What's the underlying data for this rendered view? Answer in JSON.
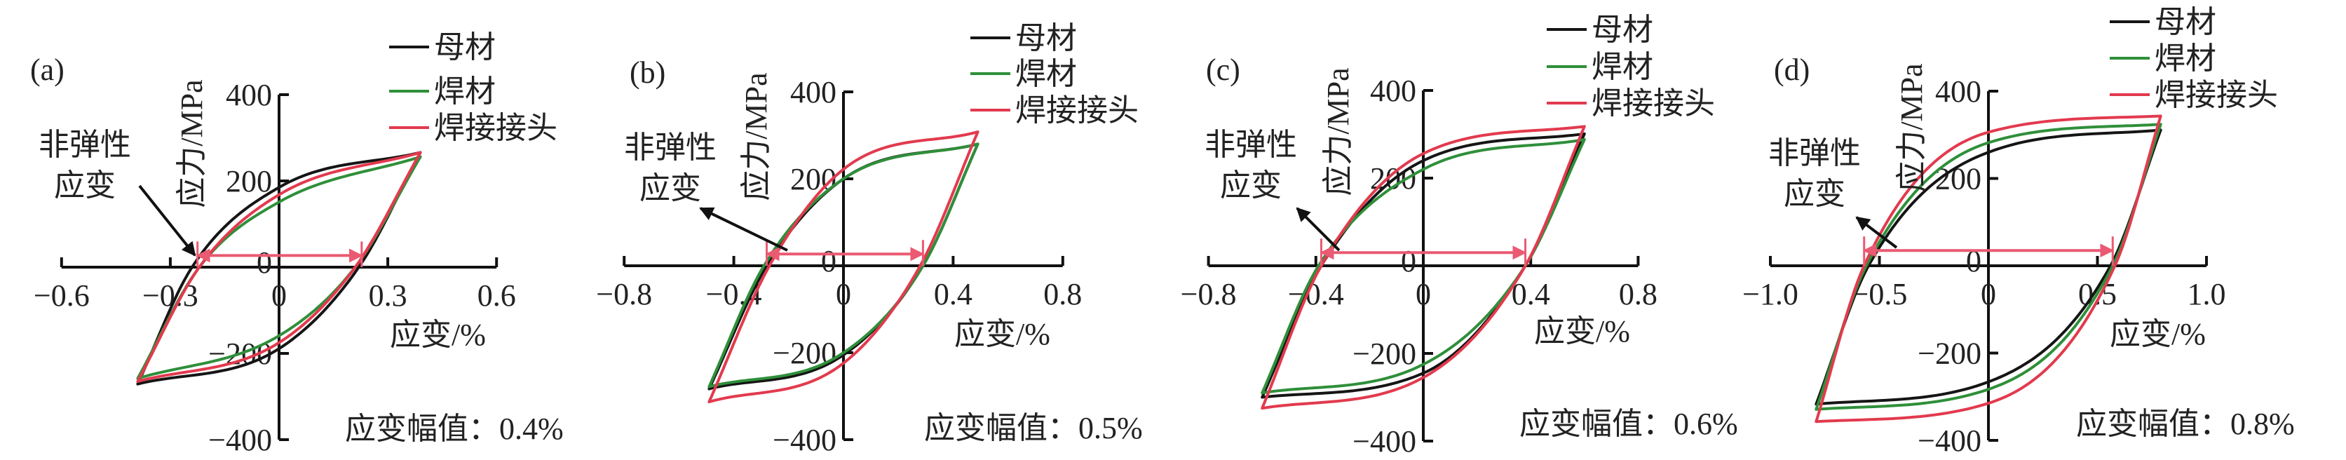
{
  "colors": {
    "母材": "#151515",
    "焊材": "#2f8f3a",
    "焊接接头": "#e23a4e",
    "marker": "#ea5a72",
    "annotation_arrow": "#111111"
  },
  "legend": [
    "母材",
    "焊材",
    "焊接接头"
  ],
  "chart_data": [
    {
      "type": "line",
      "panel_label": "(a)",
      "xlabel": "应变/%",
      "ylabel": "应力/MPa",
      "xlim": [
        -0.6,
        0.6
      ],
      "ylim": [
        -400,
        400
      ],
      "xticks": [
        "-0.6",
        "-0.3",
        "0",
        "0.3",
        "0.6"
      ],
      "xtick_values": [
        -0.6,
        -0.3,
        0,
        0.3,
        0.6
      ],
      "yticks": [
        "400",
        "200",
        "0",
        "-200",
        "-400"
      ],
      "ytick_values": [
        400,
        200,
        0,
        -200,
        -400
      ],
      "annotation": "非弹性\n应变",
      "amplitude_text": "应变幅值：0.4%",
      "inelastic_strain_marker": {
        "from": -0.225,
        "to": 0.228,
        "stress": 27
      },
      "series": [
        {
          "name": "母材",
          "peak": [
            0.39,
            266
          ],
          "valley": [
            -0.39,
            -271
          ],
          "upper_stress_at_zero_strain": 185,
          "lower_stress_at_zero_strain": -189,
          "upper_strain_at_zero_stress": -0.24,
          "lower_strain_at_zero_stress": 0.22
        },
        {
          "name": "焊材",
          "peak": [
            0.39,
            256
          ],
          "valley": [
            -0.39,
            -258
          ],
          "upper_stress_at_zero_strain": 151,
          "lower_stress_at_zero_strain": -159,
          "upper_strain_at_zero_stress": -0.22,
          "lower_strain_at_zero_stress": 0.21
        },
        {
          "name": "焊接接头",
          "peak": [
            0.39,
            266
          ],
          "valley": [
            -0.39,
            -265
          ],
          "upper_stress_at_zero_strain": 168,
          "lower_stress_at_zero_strain": -175,
          "upper_strain_at_zero_stress": -0.22,
          "lower_strain_at_zero_stress": 0.21
        }
      ]
    },
    {
      "type": "line",
      "panel_label": "(b)",
      "xlabel": "应变/%",
      "ylabel": "应力/MPa",
      "xlim": [
        -0.8,
        0.8
      ],
      "ylim": [
        -400,
        400
      ],
      "xticks": [
        "-0.8",
        "-0.4",
        "0",
        "0.4",
        "0.8"
      ],
      "xtick_values": [
        -0.8,
        -0.4,
        0,
        0.4,
        0.8
      ],
      "yticks": [
        "400",
        "200",
        "0",
        "-200",
        "-400"
      ],
      "ytick_values": [
        400,
        200,
        0,
        -200,
        -400
      ],
      "annotation": "非弹性\n应变",
      "amplitude_text": "应变幅值：0.5%",
      "inelastic_strain_marker": {
        "from": -0.28,
        "to": 0.29,
        "stress": 27
      },
      "series": [
        {
          "name": "母材",
          "peak": [
            0.49,
            280
          ],
          "valley": [
            -0.49,
            -283
          ],
          "upper_stress_at_zero_strain": 200,
          "lower_stress_at_zero_strain": -205,
          "upper_strain_at_zero_stress": -0.28,
          "lower_strain_at_zero_stress": 0.29
        },
        {
          "name": "焊材",
          "peak": [
            0.49,
            280
          ],
          "valley": [
            -0.49,
            -278
          ],
          "upper_stress_at_zero_strain": 200,
          "lower_stress_at_zero_strain": -200,
          "upper_strain_at_zero_stress": -0.29,
          "lower_strain_at_zero_stress": 0.29
        },
        {
          "name": "焊接接头",
          "peak": [
            0.49,
            308
          ],
          "valley": [
            -0.49,
            -313
          ],
          "upper_stress_at_zero_strain": 222,
          "lower_stress_at_zero_strain": -224,
          "upper_strain_at_zero_stress": -0.27,
          "lower_strain_at_zero_stress": 0.28
        }
      ]
    },
    {
      "type": "line",
      "panel_label": "(c)",
      "xlabel": "应变/%",
      "ylabel": "应力/MPa",
      "xlim": [
        -0.8,
        0.8
      ],
      "ylim": [
        -400,
        400
      ],
      "xticks": [
        "-0.8",
        "-0.4",
        "0",
        "0.4",
        "0.8"
      ],
      "xtick_values": [
        -0.8,
        -0.4,
        0,
        0.4,
        0.8
      ],
      "yticks": [
        "400",
        "200",
        "0",
        "-200",
        "-400"
      ],
      "ytick_values": [
        400,
        200,
        0,
        -200,
        -400
      ],
      "annotation": "非弹性\n应变",
      "amplitude_text": "应变幅值：0.6%",
      "inelastic_strain_marker": {
        "from": -0.38,
        "to": 0.38,
        "stress": 30
      },
      "series": [
        {
          "name": "母材",
          "peak": [
            0.6,
            301
          ],
          "valley": [
            -0.6,
            -300
          ],
          "upper_stress_at_zero_strain": 240,
          "lower_stress_at_zero_strain": -245,
          "upper_strain_at_zero_stress": -0.38,
          "lower_strain_at_zero_stress": 0.38
        },
        {
          "name": "焊材",
          "peak": [
            0.6,
            288
          ],
          "valley": [
            -0.6,
            -290
          ],
          "upper_stress_at_zero_strain": 220,
          "lower_stress_at_zero_strain": -225,
          "upper_strain_at_zero_stress": -0.39,
          "lower_strain_at_zero_stress": 0.38
        },
        {
          "name": "焊接接头",
          "peak": [
            0.6,
            318
          ],
          "valley": [
            -0.6,
            -325
          ],
          "upper_stress_at_zero_strain": 256,
          "lower_stress_at_zero_strain": -255,
          "upper_strain_at_zero_stress": -0.38,
          "lower_strain_at_zero_stress": 0.38
        }
      ]
    },
    {
      "type": "line",
      "panel_label": "(d)",
      "xlabel": "应变/%",
      "ylabel": "应力/MPa",
      "xlim": [
        -1.0,
        1.0
      ],
      "ylim": [
        -400,
        400
      ],
      "xticks": [
        "-1.0",
        "-0.5",
        "0",
        "0.5",
        "1.0"
      ],
      "xtick_values": [
        -1.0,
        -0.5,
        0,
        0.5,
        1.0
      ],
      "yticks": [
        "400",
        "200",
        "0",
        "-200",
        "-400"
      ],
      "ytick_values": [
        400,
        200,
        0,
        -200,
        -400
      ],
      "annotation": "非弹性\n应变",
      "amplitude_text": "应变幅值：0.8%",
      "inelastic_strain_marker": {
        "from": -0.57,
        "to": 0.57,
        "stress": 35
      },
      "series": [
        {
          "name": "母材",
          "peak": [
            0.79,
            311
          ],
          "valley": [
            -0.79,
            -317
          ],
          "upper_stress_at_zero_strain": 260,
          "lower_stress_at_zero_strain": -266,
          "upper_strain_at_zero_stress": -0.55,
          "lower_strain_at_zero_stress": 0.56
        },
        {
          "name": "焊材",
          "peak": [
            0.79,
            324
          ],
          "valley": [
            -0.79,
            -329
          ],
          "upper_stress_at_zero_strain": 282,
          "lower_stress_at_zero_strain": -283,
          "upper_strain_at_zero_stress": -0.56,
          "lower_strain_at_zero_stress": 0.57
        },
        {
          "name": "焊接接头",
          "peak": [
            0.79,
            343
          ],
          "valley": [
            -0.79,
            -357
          ],
          "upper_stress_at_zero_strain": 306,
          "lower_stress_at_zero_strain": -315,
          "upper_strain_at_zero_stress": -0.57,
          "lower_strain_at_zero_stress": 0.58
        }
      ]
    }
  ]
}
